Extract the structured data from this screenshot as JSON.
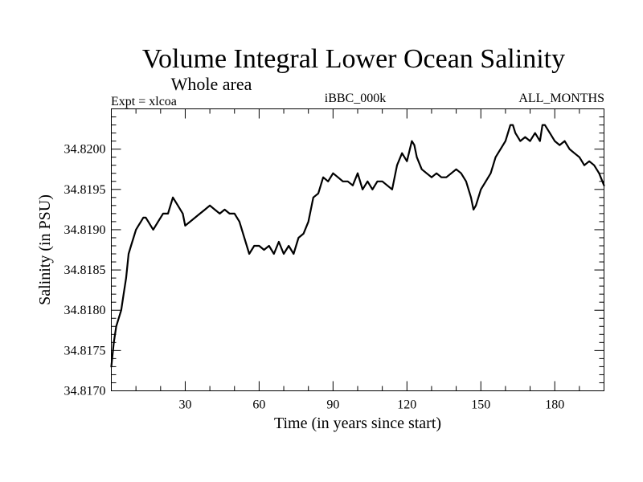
{
  "header": {
    "title": "Volume Integral Lower Ocean Salinity",
    "subtitle": "Whole area",
    "left_label": "Expt = xlcoa",
    "center_label": "iBBC_000k",
    "right_label": "ALL_MONTHS"
  },
  "chart_data": {
    "type": "line",
    "title": "Volume Integral Lower Ocean Salinity",
    "subtitle": "Whole area",
    "xlabel": "Time (in years since start)",
    "ylabel": "Salinity (in PSU)",
    "xlim": [
      0,
      200
    ],
    "ylim": [
      34.817,
      34.8205
    ],
    "x_ticks": [
      30,
      60,
      90,
      120,
      150,
      180
    ],
    "x_tick_labels": [
      "30",
      "60",
      "90",
      "120",
      "150",
      "180"
    ],
    "y_ticks": [
      34.817,
      34.8175,
      34.818,
      34.8185,
      34.819,
      34.8195,
      34.82
    ],
    "y_tick_labels": [
      "34.8170",
      "34.8175",
      "34.8180",
      "34.8185",
      "34.8190",
      "34.8195",
      "34.8200"
    ],
    "grid": false,
    "line_color": "#000000",
    "series": [
      {
        "name": "salinity",
        "x": [
          0,
          1,
          2,
          3,
          4,
          5,
          6,
          7,
          8,
          9,
          10,
          11,
          12,
          13,
          14,
          15,
          17,
          19,
          21,
          23,
          25,
          27,
          29,
          30,
          32,
          34,
          36,
          38,
          40,
          42,
          44,
          46,
          48,
          50,
          52,
          54,
          56,
          58,
          60,
          62,
          64,
          66,
          68,
          70,
          72,
          74,
          76,
          78,
          80,
          82,
          84,
          86,
          88,
          90,
          92,
          94,
          96,
          98,
          100,
          102,
          104,
          106,
          108,
          110,
          112,
          114,
          116,
          118,
          120,
          122,
          123,
          124,
          126,
          128,
          130,
          132,
          134,
          136,
          138,
          140,
          142,
          144,
          146,
          147,
          148,
          150,
          152,
          154,
          156,
          158,
          160,
          162,
          163,
          164,
          166,
          168,
          170,
          172,
          174,
          175,
          176,
          178,
          180,
          182,
          184,
          186,
          188,
          190,
          192,
          194,
          196,
          198,
          200
        ],
        "values": [
          34.8173,
          34.8176,
          34.8178,
          34.8179,
          34.818,
          34.8182,
          34.8184,
          34.8187,
          34.8188,
          34.8189,
          34.819,
          34.81905,
          34.8191,
          34.81915,
          34.81915,
          34.8191,
          34.819,
          34.8191,
          34.8192,
          34.8192,
          34.8194,
          34.8193,
          34.8192,
          34.81905,
          34.8191,
          34.81915,
          34.8192,
          34.81925,
          34.8193,
          34.81925,
          34.8192,
          34.81925,
          34.8192,
          34.8192,
          34.8191,
          34.8189,
          34.8187,
          34.8188,
          34.8188,
          34.81875,
          34.8188,
          34.8187,
          34.81885,
          34.8187,
          34.8188,
          34.8187,
          34.8189,
          34.81895,
          34.8191,
          34.8194,
          34.81945,
          34.81965,
          34.8196,
          34.8197,
          34.81965,
          34.8196,
          34.8196,
          34.81955,
          34.8197,
          34.8195,
          34.8196,
          34.8195,
          34.8196,
          34.8196,
          34.81955,
          34.8195,
          34.8198,
          34.81995,
          34.81985,
          34.8201,
          34.82005,
          34.8199,
          34.81975,
          34.8197,
          34.81965,
          34.8197,
          34.81965,
          34.81965,
          34.8197,
          34.81975,
          34.8197,
          34.8196,
          34.8194,
          34.81925,
          34.8193,
          34.8195,
          34.8196,
          34.8197,
          34.8199,
          34.82,
          34.8201,
          34.8203,
          34.8203,
          34.8202,
          34.8201,
          34.82015,
          34.8201,
          34.8202,
          34.8201,
          34.8203,
          34.8203,
          34.8202,
          34.8201,
          34.82005,
          34.8201,
          34.82,
          34.81995,
          34.8199,
          34.8198,
          34.81985,
          34.8198,
          34.8197,
          34.81955
        ]
      }
    ]
  }
}
